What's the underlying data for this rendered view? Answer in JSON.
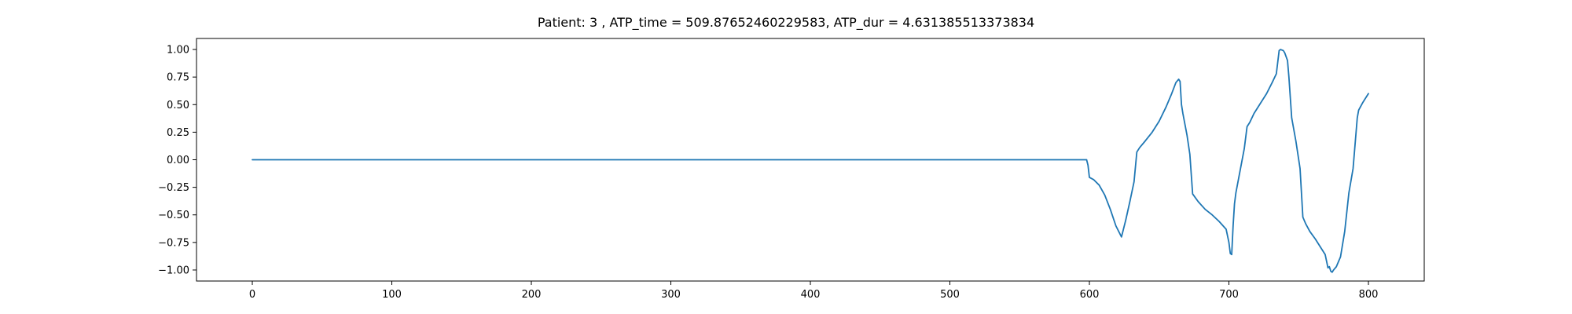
{
  "chart_data": {
    "type": "line",
    "title": "Patient: 3 , ATP_time = 509.87652460229583, ATP_dur = 4.631385513373834",
    "xlabel": "",
    "ylabel": "",
    "xlim": [
      -40,
      840
    ],
    "ylim": [
      -1.1,
      1.1
    ],
    "xticks": [
      0,
      100,
      200,
      300,
      400,
      500,
      600,
      700,
      800
    ],
    "yticks": [
      1.0,
      0.75,
      0.5,
      0.25,
      0.0,
      -0.25,
      -0.5,
      -0.75,
      -1.0
    ],
    "xtick_labels": [
      "0",
      "100",
      "200",
      "300",
      "400",
      "500",
      "600",
      "700",
      "800"
    ],
    "ytick_labels": [
      "1.00",
      "0.75",
      "0.50",
      "0.25",
      "0.00",
      "−0.25",
      "−0.50",
      "−0.75",
      "−1.00"
    ],
    "grid": false,
    "series_color": "#1f77b4",
    "series": [
      {
        "x": [
          0,
          100,
          200,
          300,
          400,
          500,
          598,
          599,
          600,
          603,
          607,
          611,
          615,
          619,
          623,
          626,
          629,
          632,
          634,
          636,
          640,
          645,
          650,
          655,
          659,
          662,
          664,
          665,
          666,
          667,
          670,
          672,
          674,
          678,
          683,
          688,
          693,
          698,
          700,
          701,
          702,
          703,
          704,
          705,
          708,
          711,
          713,
          715,
          718,
          722,
          727,
          731,
          734,
          736,
          737,
          739,
          740,
          742,
          743,
          745,
          748,
          751,
          753,
          755,
          758,
          762,
          766,
          769,
          771,
          772,
          773,
          774,
          775,
          777,
          780,
          783,
          786,
          789,
          792,
          793,
          796,
          800
        ],
        "y": [
          0,
          0,
          0,
          0,
          0,
          0,
          0.0,
          -0.05,
          -0.16,
          -0.18,
          -0.23,
          -0.32,
          -0.45,
          -0.6,
          -0.7,
          -0.55,
          -0.38,
          -0.2,
          0.07,
          0.11,
          0.17,
          0.25,
          0.35,
          0.48,
          0.6,
          0.7,
          0.73,
          0.71,
          0.5,
          0.42,
          0.22,
          0.05,
          -0.31,
          -0.38,
          -0.45,
          -0.5,
          -0.56,
          -0.63,
          -0.75,
          -0.85,
          -0.86,
          -0.6,
          -0.4,
          -0.3,
          -0.1,
          0.1,
          0.3,
          0.34,
          0.42,
          0.5,
          0.6,
          0.7,
          0.78,
          0.99,
          1.0,
          0.99,
          0.97,
          0.9,
          0.75,
          0.38,
          0.17,
          -0.08,
          -0.52,
          -0.58,
          -0.65,
          -0.72,
          -0.8,
          -0.86,
          -0.98,
          -0.97,
          -1.01,
          -1.02,
          -1.0,
          -0.97,
          -0.88,
          -0.65,
          -0.3,
          -0.08,
          0.38,
          0.45,
          0.52,
          0.6
        ]
      }
    ]
  }
}
